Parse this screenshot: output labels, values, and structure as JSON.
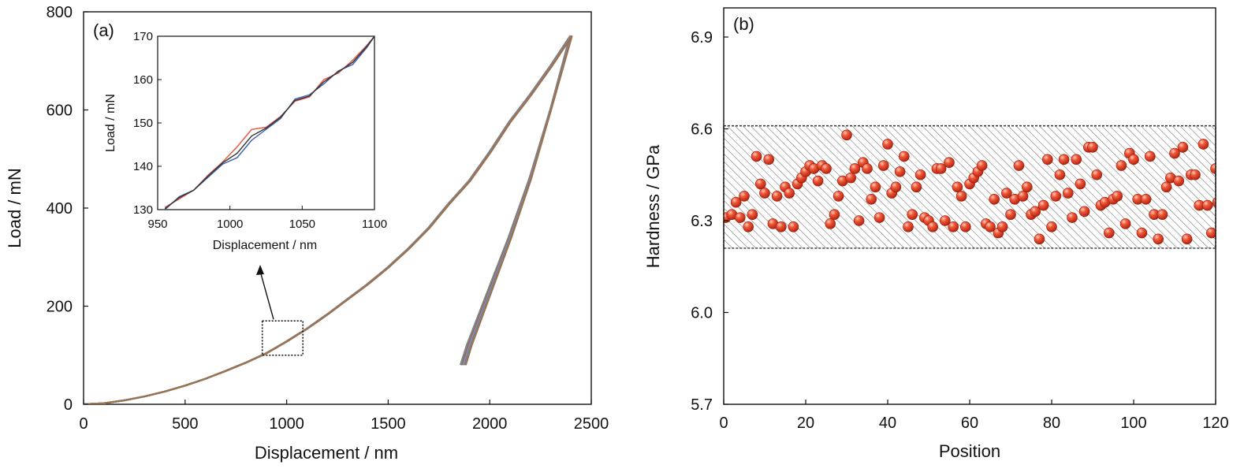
{
  "chart_data": [
    {
      "type": "line",
      "panel": "(a)",
      "xlabel": "Displacement / nm",
      "ylabel": "Load / mN",
      "xlim": [
        0,
        2500
      ],
      "ylim": [
        0,
        800
      ],
      "x_ticks": [
        "0",
        "500",
        "1000",
        "1500",
        "2000",
        "2500"
      ],
      "y_ticks": [
        "0",
        "200",
        "400",
        "600",
        "800"
      ],
      "series_description": "many overlapping load-unload curves",
      "loading_curve": {
        "x": [
          0,
          100,
          200,
          300,
          400,
          500,
          600,
          700,
          800,
          900,
          1000,
          1100,
          1200,
          1300,
          1400,
          1500,
          1600,
          1700,
          1800,
          1900,
          2000,
          2100,
          2200,
          2300,
          2400
        ],
        "y": [
          0,
          2,
          8,
          16,
          26,
          38,
          52,
          68,
          85,
          104,
          128,
          154,
          183,
          214,
          245,
          279,
          317,
          359,
          409,
          455,
          513,
          576,
          630,
          688,
          750
        ]
      },
      "unloading_curve": {
        "x": [
          2400,
          2300,
          2200,
          2100,
          2000,
          1900,
          1870
        ],
        "y": [
          750,
          600,
          460,
          340,
          230,
          120,
          80
        ]
      },
      "max_load": 750,
      "max_displacement": 2400,
      "zoom_box": {
        "x": [
          880,
          1080
        ],
        "y": [
          100,
          170
        ]
      },
      "inset": {
        "xlabel": "Displacement / nm",
        "ylabel": "Load / mN",
        "xlim": [
          950,
          1100
        ],
        "ylim": [
          130,
          170
        ],
        "x_ticks": [
          "950",
          "1000",
          "1050",
          "1100"
        ],
        "y_ticks": [
          "130",
          "140",
          "150",
          "160",
          "170"
        ],
        "series": [
          {
            "color": "#e8543c",
            "x": [
              955,
              965,
              975,
              985,
              995,
              1005,
              1015,
              1025,
              1035,
              1045,
              1055,
              1065,
              1075,
              1085,
              1095,
              1100
            ],
            "y": [
              130.5,
              132.5,
              134.5,
              138,
              141,
              144.5,
              148.5,
              149,
              151.5,
              155,
              156,
              160,
              161.5,
              164.5,
              168,
              170
            ]
          },
          {
            "color": "#3a5fb0",
            "x": [
              955,
              965,
              975,
              985,
              995,
              1005,
              1015,
              1025,
              1035,
              1045,
              1055,
              1065,
              1075,
              1085,
              1095,
              1100
            ],
            "y": [
              130,
              133,
              134.5,
              137.5,
              140.5,
              142,
              146,
              148.5,
              151,
              155.5,
              156.5,
              159,
              162,
              163.5,
              167.5,
              170
            ]
          },
          {
            "color": "#333333",
            "x": [
              955,
              965,
              975,
              985,
              995,
              1005,
              1015,
              1025,
              1035,
              1045,
              1055,
              1065,
              1075,
              1085,
              1095,
              1100
            ],
            "y": [
              130.2,
              132.8,
              134.5,
              137.8,
              140.8,
              143,
              147,
              148.8,
              151.3,
              155.2,
              156.2,
              159.5,
              161.8,
              164,
              167.8,
              170
            ]
          }
        ]
      }
    },
    {
      "type": "scatter",
      "panel": "(b)",
      "xlabel": "Position",
      "ylabel": "Hardness / GPa",
      "xlim": [
        0,
        120
      ],
      "ylim": [
        5.7,
        7.0
      ],
      "x_ticks": [
        "0",
        "20",
        "40",
        "60",
        "80",
        "100",
        "120"
      ],
      "y_ticks": [
        "5.7",
        "6.0",
        "6.3",
        "6.6",
        "6.9"
      ],
      "band": [
        6.21,
        6.61
      ],
      "marker_color": "#e8402a",
      "points": [
        [
          0.5,
          6.31
        ],
        [
          2,
          6.32
        ],
        [
          3,
          6.36
        ],
        [
          4,
          6.31
        ],
        [
          5,
          6.38
        ],
        [
          6,
          6.28
        ],
        [
          7,
          6.32
        ],
        [
          8,
          6.51
        ],
        [
          9,
          6.42
        ],
        [
          10,
          6.39
        ],
        [
          11,
          6.5
        ],
        [
          12,
          6.29
        ],
        [
          13,
          6.38
        ],
        [
          14,
          6.28
        ],
        [
          15,
          6.41
        ],
        [
          16,
          6.39
        ],
        [
          17,
          6.28
        ],
        [
          18,
          6.42
        ],
        [
          19,
          6.44
        ],
        [
          20,
          6.46
        ],
        [
          21,
          6.48
        ],
        [
          22,
          6.47
        ],
        [
          23,
          6.43
        ],
        [
          24,
          6.48
        ],
        [
          25,
          6.47
        ],
        [
          26,
          6.29
        ],
        [
          27,
          6.32
        ],
        [
          28,
          6.38
        ],
        [
          29,
          6.43
        ],
        [
          30,
          6.58
        ],
        [
          31,
          6.44
        ],
        [
          32,
          6.47
        ],
        [
          33,
          6.3
        ],
        [
          34,
          6.49
        ],
        [
          35,
          6.47
        ],
        [
          36,
          6.37
        ],
        [
          37,
          6.41
        ],
        [
          38,
          6.31
        ],
        [
          39,
          6.48
        ],
        [
          40,
          6.55
        ],
        [
          41,
          6.39
        ],
        [
          42,
          6.41
        ],
        [
          43,
          6.46
        ],
        [
          44,
          6.51
        ],
        [
          45,
          6.28
        ],
        [
          46,
          6.32
        ],
        [
          47,
          6.41
        ],
        [
          48,
          6.45
        ],
        [
          49,
          6.31
        ],
        [
          50,
          6.3
        ],
        [
          51,
          6.28
        ],
        [
          52,
          6.47
        ],
        [
          53,
          6.47
        ],
        [
          54,
          6.3
        ],
        [
          55,
          6.49
        ],
        [
          56,
          6.28
        ],
        [
          57,
          6.41
        ],
        [
          58,
          6.38
        ],
        [
          59,
          6.28
        ],
        [
          60,
          6.42
        ],
        [
          61,
          6.44
        ],
        [
          62,
          6.46
        ],
        [
          63,
          6.48
        ],
        [
          64,
          6.29
        ],
        [
          65,
          6.28
        ],
        [
          66,
          6.37
        ],
        [
          67,
          6.26
        ],
        [
          68,
          6.28
        ],
        [
          69,
          6.39
        ],
        [
          70,
          6.32
        ],
        [
          71,
          6.37
        ],
        [
          72,
          6.48
        ],
        [
          73,
          6.38
        ],
        [
          74,
          6.41
        ],
        [
          75,
          6.32
        ],
        [
          76,
          6.33
        ],
        [
          77,
          6.24
        ],
        [
          78,
          6.35
        ],
        [
          79,
          6.5
        ],
        [
          80,
          6.28
        ],
        [
          81,
          6.38
        ],
        [
          82,
          6.45
        ],
        [
          83,
          6.5
        ],
        [
          84,
          6.39
        ],
        [
          85,
          6.31
        ],
        [
          86,
          6.5
        ],
        [
          87,
          6.42
        ],
        [
          88,
          6.33
        ],
        [
          89,
          6.54
        ],
        [
          90,
          6.54
        ],
        [
          91,
          6.45
        ],
        [
          92,
          6.35
        ],
        [
          93,
          6.36
        ],
        [
          94,
          6.26
        ],
        [
          95,
          6.37
        ],
        [
          96,
          6.38
        ],
        [
          97,
          6.48
        ],
        [
          98,
          6.29
        ],
        [
          99,
          6.52
        ],
        [
          100,
          6.5
        ],
        [
          101,
          6.37
        ],
        [
          102,
          6.26
        ],
        [
          103,
          6.37
        ],
        [
          104,
          6.51
        ],
        [
          105,
          6.32
        ],
        [
          106,
          6.24
        ],
        [
          107,
          6.32
        ],
        [
          108,
          6.41
        ],
        [
          109,
          6.44
        ],
        [
          110,
          6.52
        ],
        [
          111,
          6.43
        ],
        [
          112,
          6.54
        ],
        [
          113,
          6.24
        ],
        [
          114,
          6.45
        ],
        [
          115,
          6.45
        ],
        [
          116,
          6.35
        ],
        [
          117,
          6.55
        ],
        [
          118,
          6.35
        ],
        [
          119,
          6.26
        ],
        [
          120,
          6.47
        ],
        [
          120.5,
          6.36
        ]
      ]
    }
  ]
}
